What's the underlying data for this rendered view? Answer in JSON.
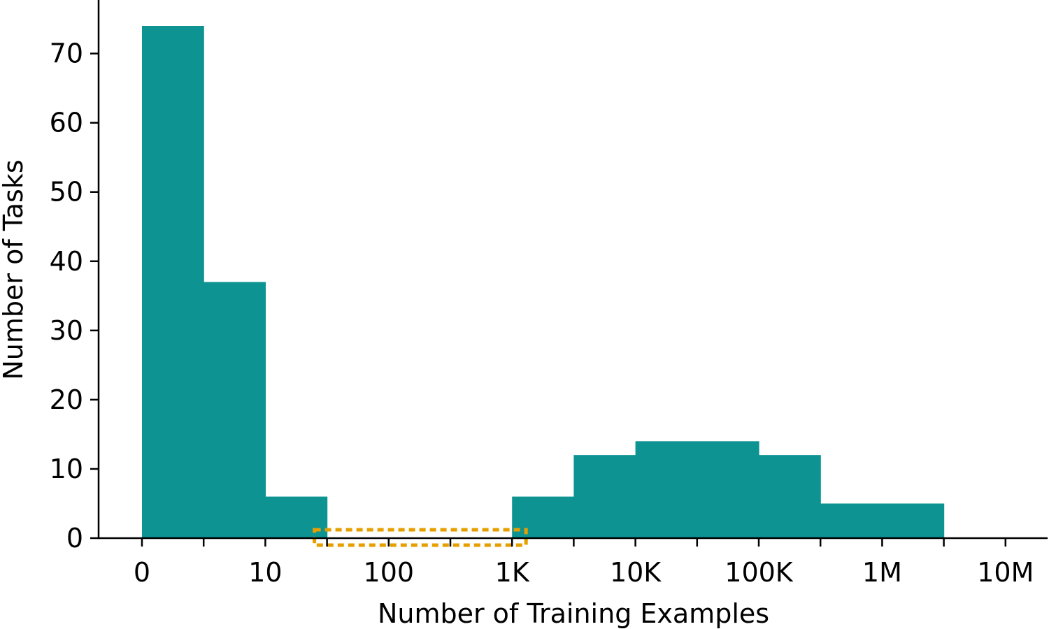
{
  "chart_data": {
    "type": "bar",
    "title": "",
    "xlabel": "Number of Training Examples",
    "ylabel": "Number of Tasks",
    "x_scale": "log",
    "x_tick_labels": [
      "0",
      "10",
      "100",
      "1K",
      "10K",
      "100K",
      "1M",
      "10M"
    ],
    "y_ticks": [
      0,
      10,
      20,
      30,
      40,
      50,
      60,
      70
    ],
    "ylim": [
      0,
      78
    ],
    "bin_edges": [
      "0",
      "3",
      "10",
      "30",
      "100",
      "300",
      "1K",
      "3K",
      "10K",
      "30K",
      "100K",
      "300K",
      "1M",
      "3M",
      "10M"
    ],
    "series": [
      {
        "values": [
          74,
          37,
          6,
          0,
          0,
          0,
          6,
          12,
          14,
          14,
          12,
          5,
          5,
          0
        ]
      }
    ],
    "grid": false,
    "highlight": {
      "style": "dotted box",
      "from": "30",
      "to": "1K"
    },
    "colors": {
      "bar": "#0e9393",
      "highlight": "#e69f00",
      "axis": "#000000"
    }
  }
}
